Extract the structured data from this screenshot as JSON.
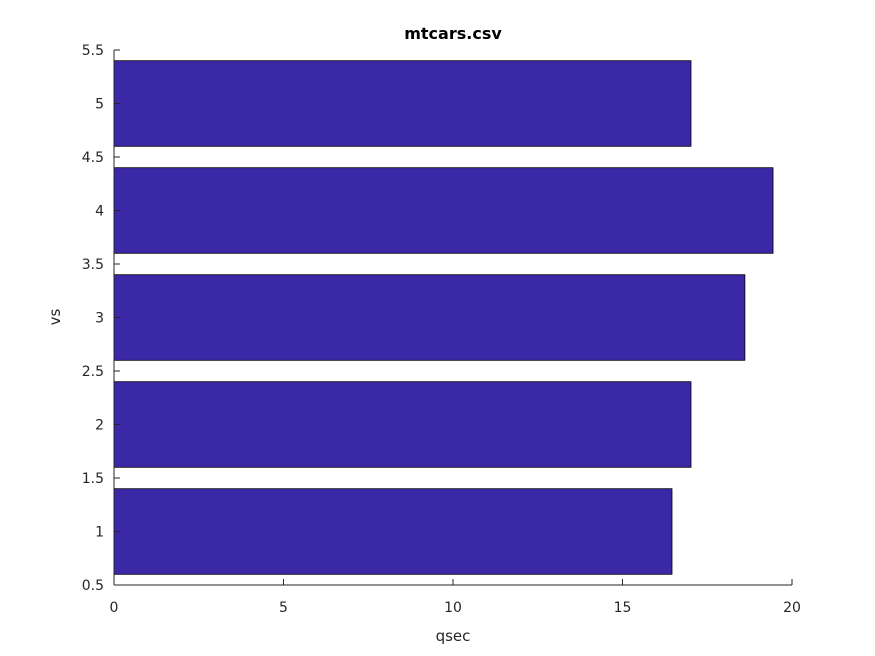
{
  "chart_data": {
    "type": "bar",
    "orientation": "horizontal",
    "title": "mtcars.csv",
    "xlabel": "qsec",
    "ylabel": "vs",
    "categories": [
      1,
      2,
      3,
      4,
      5
    ],
    "values": [
      16.46,
      17.02,
      18.61,
      19.44,
      17.02
    ],
    "xlim": [
      0,
      20
    ],
    "ylim": [
      0.5,
      5.5
    ],
    "xticks": [
      "0",
      "5",
      "10",
      "15",
      "20"
    ],
    "yticks": [
      "0.5",
      "1",
      "1.5",
      "2",
      "2.5",
      "3",
      "3.5",
      "4",
      "4.5",
      "5",
      "5.5"
    ],
    "bar_color": "#3b28a6",
    "grid": false
  }
}
